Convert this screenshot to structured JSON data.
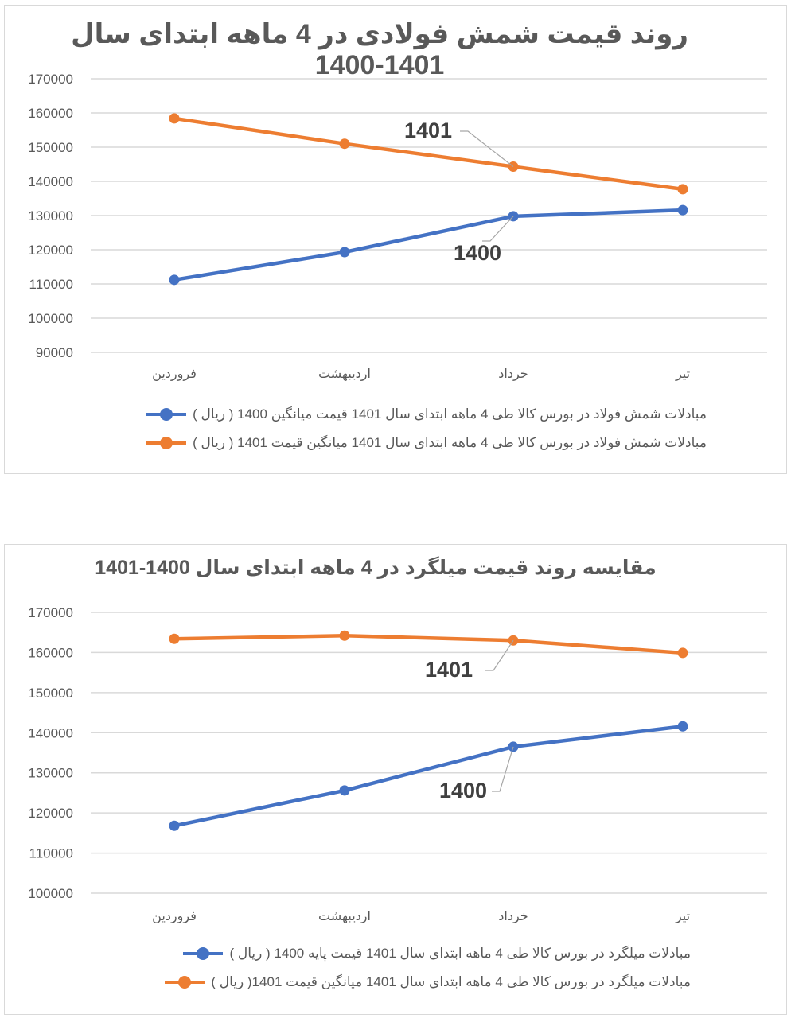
{
  "colors": {
    "series_1400": "#4472C4",
    "series_1401": "#ED7D31",
    "grid": "#D9D9D9",
    "text": "#595959",
    "label": "#404040"
  },
  "chart_data": [
    {
      "type": "line",
      "title": "روند قیمت شمش فولادی در 4 ماهه ابتدای سال 1401-1400",
      "categories": [
        "فروردین",
        "اردیبهشت",
        "خرداد",
        "تیر"
      ],
      "series": [
        {
          "name": "مبادلات شمش فولاد در بورس کالا طی 4 ماهه ابتدای سال 1401 قیمت میانگین 1400 ( ریال )",
          "label": "1400",
          "values": [
            111200,
            119300,
            129800,
            131600
          ]
        },
        {
          "name": "مبادلات شمش فولاد در بورس کالا طی 4 ماهه ابتدای سال 1401 میانگین قیمت 1401 ( ریال )",
          "label": "1401",
          "values": [
            158400,
            151000,
            144300,
            137700
          ]
        }
      ],
      "yticks": [
        "170000",
        "160000",
        "150000",
        "140000",
        "130000",
        "120000",
        "110000",
        "100000",
        "90000"
      ],
      "ylim": [
        90000,
        170000
      ],
      "xlabel": "",
      "ylabel": "",
      "grid": true,
      "legend_position": "bottom"
    },
    {
      "type": "line",
      "title": "مقایسه روند قیمت میلگرد در 4 ماهه ابتدای سال 1400-1401",
      "categories": [
        "فروردین",
        "اردیبهشت",
        "خرداد",
        "تیر"
      ],
      "series": [
        {
          "name": "مبادلات میلگرد در بورس کالا طی 4 ماهه ابتدای سال 1401 قیمت پایه 1400 ( ریال )",
          "label": "1400",
          "values": [
            116800,
            125600,
            136500,
            141600
          ]
        },
        {
          "name": "مبادلات میلگرد در بورس کالا طی 4 ماهه ابتدای سال 1401 میانگین قیمت 1401( ریال )",
          "label": "1401",
          "values": [
            163400,
            164200,
            163000,
            159900
          ]
        }
      ],
      "yticks": [
        "170000",
        "160000",
        "150000",
        "140000",
        "130000",
        "120000",
        "110000",
        "100000"
      ],
      "ylim": [
        100000,
        170000
      ],
      "xlabel": "",
      "ylabel": "",
      "grid": true,
      "legend_position": "bottom"
    }
  ]
}
